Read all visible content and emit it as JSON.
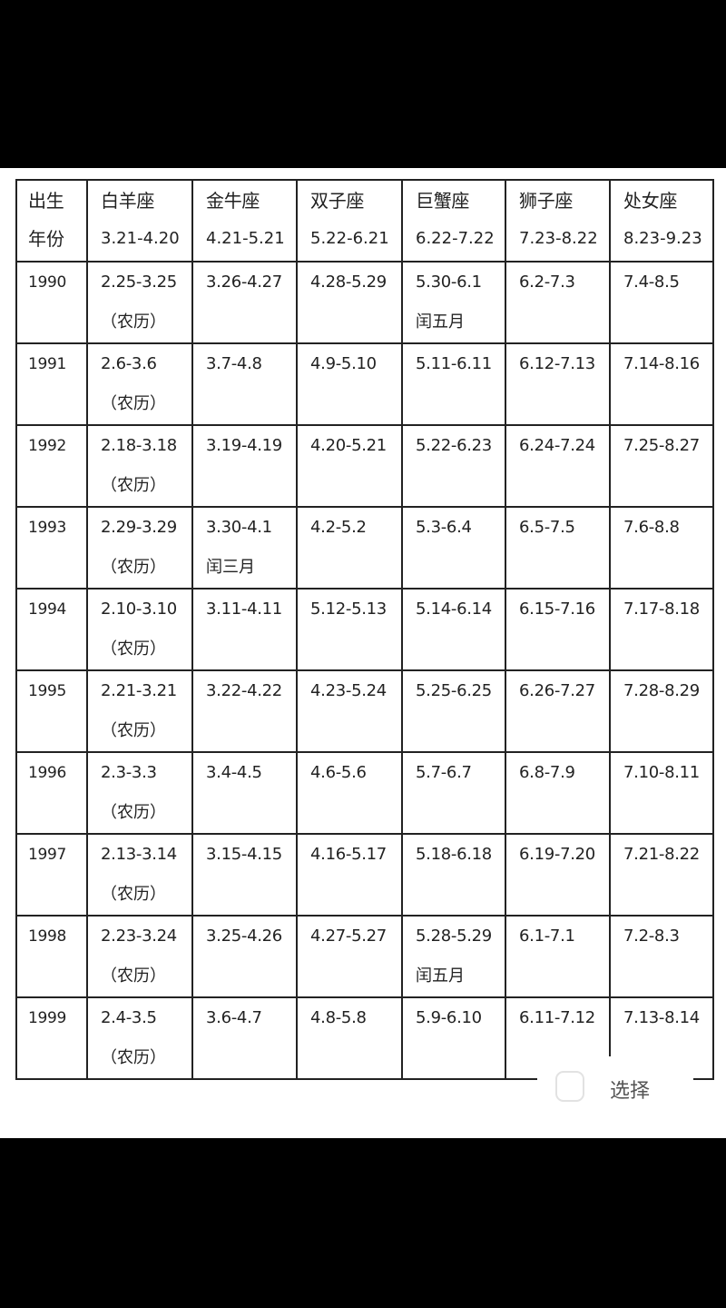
{
  "header": {
    "year_col": [
      "出生",
      "年份"
    ],
    "signs": [
      {
        "name": "白羊座",
        "range": "3.21-4.20"
      },
      {
        "name": "金牛座",
        "range": "4.21-5.21"
      },
      {
        "name": "双子座",
        "range": "5.22-6.21"
      },
      {
        "name": "巨蟹座",
        "range": "6.22-7.22"
      },
      {
        "name": "狮子座",
        "range": "7.23-8.22"
      },
      {
        "name": "处女座",
        "range": "8.23-9.23"
      }
    ]
  },
  "rows": [
    {
      "year": "1990",
      "cells": [
        [
          "2.25-3.25",
          "（农历）"
        ],
        [
          "3.26-4.27",
          ""
        ],
        [
          "4.28-5.29",
          ""
        ],
        [
          "5.30-6.1",
          "闰五月"
        ],
        [
          "6.2-7.3",
          ""
        ],
        [
          "7.4-8.5",
          ""
        ]
      ]
    },
    {
      "year": "1991",
      "cells": [
        [
          "2.6-3.6",
          "（农历）"
        ],
        [
          "3.7-4.8",
          ""
        ],
        [
          "4.9-5.10",
          ""
        ],
        [
          "5.11-6.11",
          ""
        ],
        [
          "6.12-7.13",
          ""
        ],
        [
          "7.14-8.16",
          ""
        ]
      ]
    },
    {
      "year": "1992",
      "cells": [
        [
          "2.18-3.18",
          "（农历）"
        ],
        [
          "3.19-4.19",
          ""
        ],
        [
          "4.20-5.21",
          ""
        ],
        [
          "5.22-6.23",
          ""
        ],
        [
          "6.24-7.24",
          ""
        ],
        [
          "7.25-8.27",
          ""
        ]
      ]
    },
    {
      "year": "1993",
      "cells": [
        [
          "2.29-3.29",
          "（农历）"
        ],
        [
          "3.30-4.1",
          "闰三月"
        ],
        [
          "4.2-5.2",
          ""
        ],
        [
          "5.3-6.4",
          ""
        ],
        [
          "6.5-7.5",
          ""
        ],
        [
          "7.6-8.8",
          ""
        ]
      ]
    },
    {
      "year": "1994",
      "cells": [
        [
          "2.10-3.10",
          "（农历）"
        ],
        [
          "3.11-4.11",
          ""
        ],
        [
          "5.12-5.13",
          ""
        ],
        [
          "5.14-6.14",
          ""
        ],
        [
          "6.15-7.16",
          ""
        ],
        [
          "7.17-8.18",
          ""
        ]
      ]
    },
    {
      "year": "1995",
      "cells": [
        [
          "2.21-3.21",
          "（农历）"
        ],
        [
          "3.22-4.22",
          ""
        ],
        [
          "4.23-5.24",
          ""
        ],
        [
          "5.25-6.25",
          ""
        ],
        [
          "6.26-7.27",
          ""
        ],
        [
          "7.28-8.29",
          ""
        ]
      ]
    },
    {
      "year": "1996",
      "cells": [
        [
          "2.3-3.3",
          "（农历）"
        ],
        [
          "3.4-4.5",
          ""
        ],
        [
          "4.6-5.6",
          ""
        ],
        [
          "5.7-6.7",
          ""
        ],
        [
          "6.8-7.9",
          ""
        ],
        [
          "7.10-8.11",
          ""
        ]
      ]
    },
    {
      "year": "1997",
      "cells": [
        [
          "2.13-3.14",
          "（农历）"
        ],
        [
          "3.15-4.15",
          ""
        ],
        [
          "4.16-5.17",
          ""
        ],
        [
          "5.18-6.18",
          ""
        ],
        [
          "6.19-7.20",
          ""
        ],
        [
          "7.21-8.22",
          ""
        ]
      ]
    },
    {
      "year": "1998",
      "cells": [
        [
          "2.23-3.24",
          "（农历）"
        ],
        [
          "3.25-4.26",
          ""
        ],
        [
          "4.27-5.27",
          ""
        ],
        [
          "5.28-5.29",
          "闰五月"
        ],
        [
          "6.1-7.1",
          ""
        ],
        [
          "7.2-8.3",
          ""
        ]
      ]
    },
    {
      "year": "1999",
      "cells": [
        [
          "2.4-3.5",
          "（农历）"
        ],
        [
          "3.6-4.7",
          ""
        ],
        [
          "4.8-5.8",
          ""
        ],
        [
          "5.9-6.10",
          ""
        ],
        [
          "6.11-7.12",
          ""
        ],
        [
          "7.13-8.14",
          ""
        ]
      ]
    }
  ],
  "select": {
    "label": "选择",
    "icon": "checkbox-icon",
    "checked": false
  }
}
